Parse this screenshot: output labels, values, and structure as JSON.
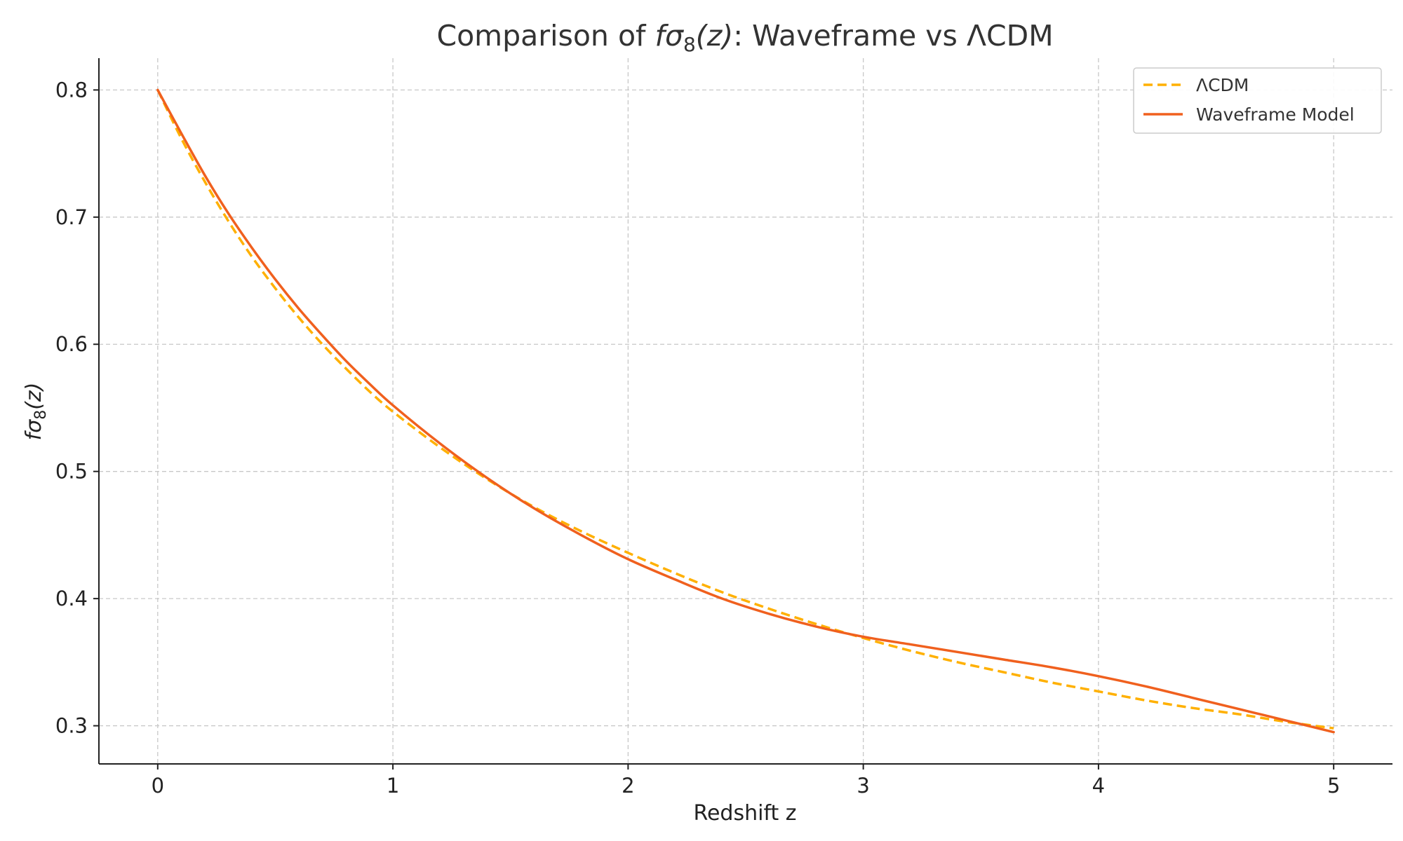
{
  "chart_data": {
    "type": "line",
    "title_prefix": "Comparison of ",
    "title_f": "f",
    "title_sigma": "σ",
    "title_sub": "8",
    "title_paren": "(z)",
    "title_suffix": ": Waveframe vs ΛCDM",
    "xlabel": "Redshift z",
    "ylabel_f": "f",
    "ylabel_sigma": "σ",
    "ylabel_sub": "8",
    "ylabel_paren": "(z)",
    "xlim": [
      -0.25,
      5.25
    ],
    "ylim": [
      0.27,
      0.825
    ],
    "xticks": [
      0,
      1,
      2,
      3,
      4,
      5
    ],
    "xtick_labels": [
      "0",
      "1",
      "2",
      "3",
      "4",
      "5"
    ],
    "yticks": [
      0.3,
      0.4,
      0.5,
      0.6,
      0.7,
      0.8
    ],
    "ytick_labels": [
      "0.3",
      "0.4",
      "0.5",
      "0.6",
      "0.7",
      "0.8"
    ],
    "grid": true,
    "legend_position": "top-right",
    "series": [
      {
        "name": "ΛCDM",
        "color": "#ffb000",
        "style": "dashed",
        "x": [
          0,
          0.1,
          0.2,
          0.3,
          0.4,
          0.5,
          0.6,
          0.7,
          0.8,
          0.9,
          1.0,
          1.2,
          1.4,
          1.6,
          1.8,
          2.0,
          2.2,
          2.4,
          2.6,
          2.8,
          3.0,
          3.2,
          3.4,
          3.6,
          3.8,
          4.0,
          4.2,
          4.4,
          4.6,
          4.8,
          5.0
        ],
        "y": [
          0.8,
          0.762,
          0.728,
          0.697,
          0.669,
          0.644,
          0.621,
          0.6,
          0.581,
          0.563,
          0.547,
          0.519,
          0.494,
          0.472,
          0.453,
          0.436,
          0.42,
          0.405,
          0.392,
          0.38,
          0.369,
          0.359,
          0.35,
          0.342,
          0.334,
          0.327,
          0.32,
          0.314,
          0.309,
          0.303,
          0.298
        ]
      },
      {
        "name": "Waveframe Model",
        "color": "#f0601e",
        "style": "solid",
        "x": [
          0,
          0.1,
          0.2,
          0.3,
          0.4,
          0.5,
          0.6,
          0.7,
          0.8,
          0.9,
          1.0,
          1.2,
          1.4,
          1.6,
          1.8,
          2.0,
          2.2,
          2.4,
          2.6,
          2.8,
          3.0,
          3.2,
          3.4,
          3.6,
          3.8,
          4.0,
          4.2,
          4.4,
          4.6,
          4.8,
          5.0
        ],
        "y": [
          0.8,
          0.766,
          0.733,
          0.703,
          0.676,
          0.651,
          0.628,
          0.607,
          0.587,
          0.569,
          0.552,
          0.522,
          0.495,
          0.471,
          0.45,
          0.431,
          0.415,
          0.4,
          0.388,
          0.378,
          0.37,
          0.364,
          0.358,
          0.352,
          0.346,
          0.339,
          0.331,
          0.322,
          0.313,
          0.304,
          0.295
        ]
      }
    ]
  }
}
